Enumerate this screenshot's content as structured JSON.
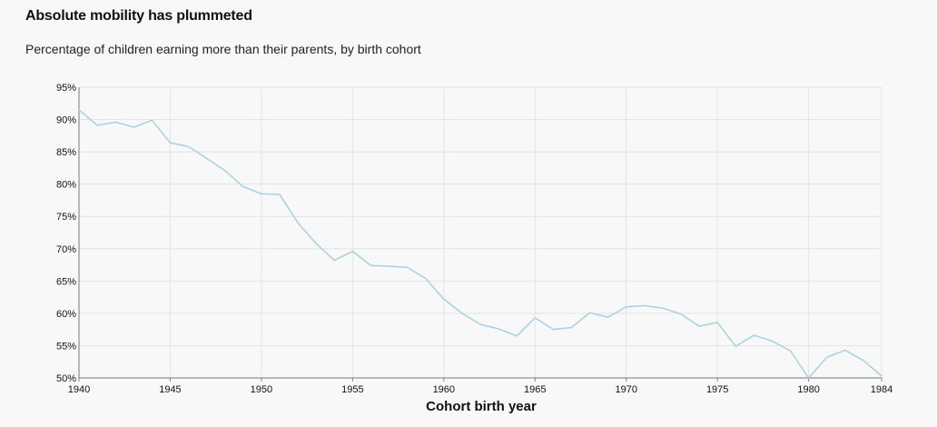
{
  "chart_data": {
    "type": "line",
    "title": "Absolute mobility has plummeted",
    "subtitle": "Percentage of children earning more than their parents, by birth cohort",
    "xlabel": "Cohort birth year",
    "ylabel": "",
    "xlim": [
      1940,
      1984
    ],
    "ylim": [
      50,
      95
    ],
    "xticks": [
      1940,
      1945,
      1950,
      1955,
      1960,
      1965,
      1970,
      1975,
      1980,
      1984
    ],
    "yticks": [
      50,
      55,
      60,
      65,
      70,
      75,
      80,
      85,
      90,
      95
    ],
    "ytick_suffix": "%",
    "grid": true,
    "line_color": "#a6d1e3",
    "x": [
      1940,
      1941,
      1942,
      1943,
      1944,
      1945,
      1946,
      1947,
      1948,
      1949,
      1950,
      1951,
      1952,
      1953,
      1954,
      1955,
      1956,
      1957,
      1958,
      1959,
      1960,
      1961,
      1962,
      1963,
      1964,
      1965,
      1966,
      1967,
      1968,
      1969,
      1970,
      1971,
      1972,
      1973,
      1974,
      1975,
      1976,
      1977,
      1978,
      1979,
      1980,
      1981,
      1982,
      1983,
      1984
    ],
    "series": [
      {
        "values": [
          91.5,
          89.1,
          89.6,
          88.8,
          89.9,
          86.4,
          85.8,
          84.0,
          82.1,
          79.6,
          78.5,
          78.4,
          74.0,
          70.8,
          68.2,
          69.6,
          67.4,
          67.3,
          67.1,
          65.4,
          62.2,
          60.0,
          58.3,
          57.6,
          56.5,
          59.3,
          57.5,
          57.8,
          60.1,
          59.4,
          61.0,
          61.2,
          60.8,
          59.9,
          58.0,
          58.6,
          54.9,
          56.6,
          55.7,
          54.2,
          50.0,
          53.2,
          54.3,
          52.7,
          50.3
        ]
      }
    ]
  }
}
